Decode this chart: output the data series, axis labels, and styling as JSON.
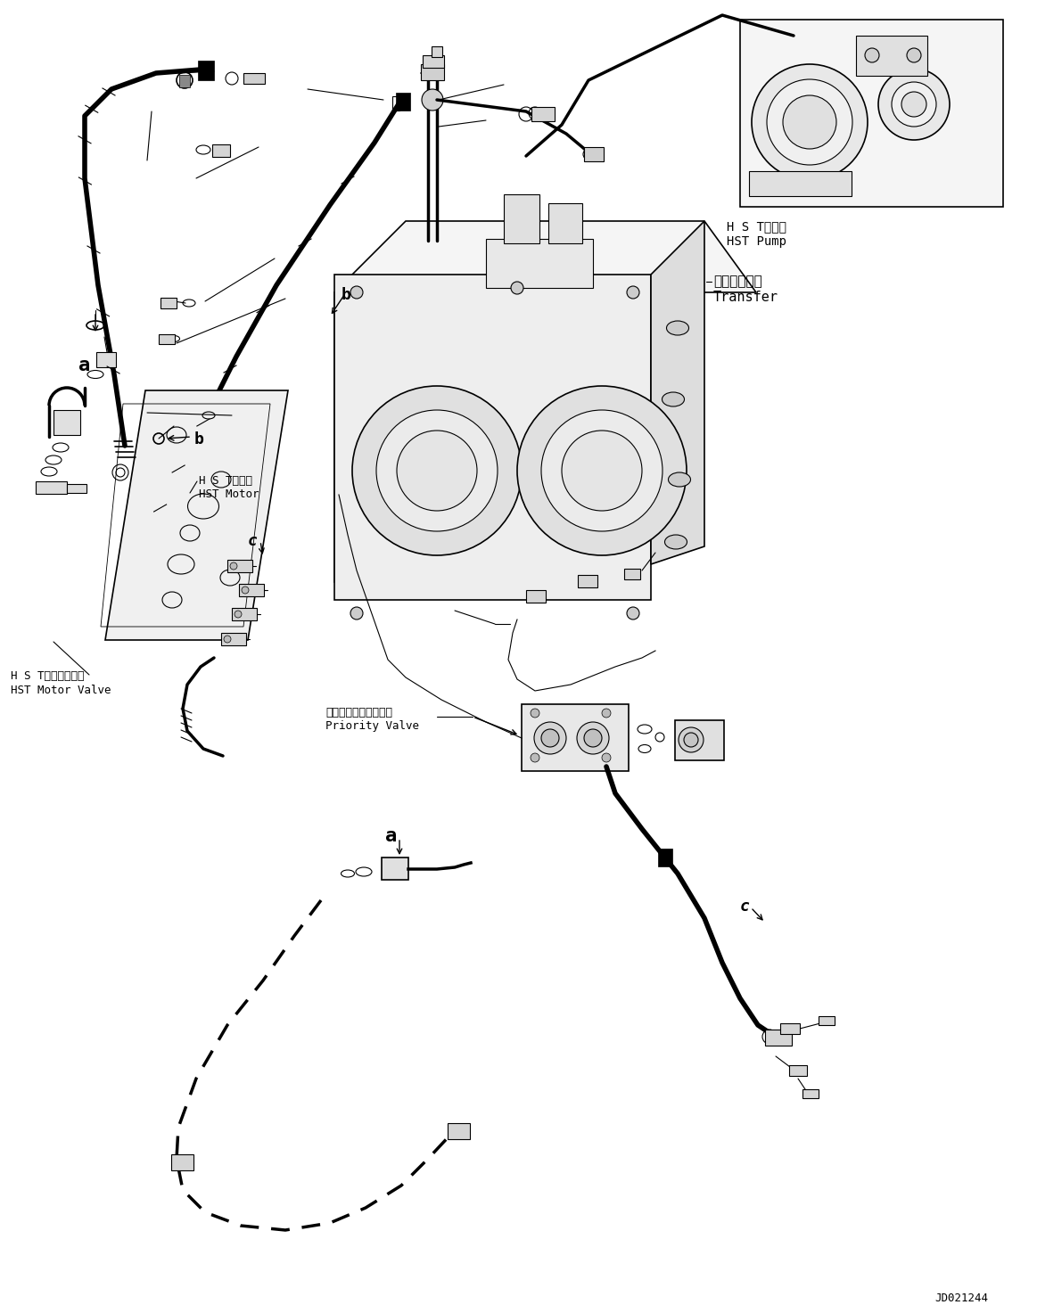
{
  "doc_number": "JD021244",
  "background_color": "#ffffff",
  "labels": {
    "hst_pump_jp": "H S Tポンプ",
    "hst_pump_en": "HST Pump",
    "transfer_jp": "トランスファ",
    "transfer_en": "Transfer",
    "hst_motor_jp": "H S Tモータ",
    "hst_motor_en": "HST Motor",
    "hst_motor_valve_jp": "H S Tモータバルブ",
    "hst_motor_valve_en": "HST Motor Valve",
    "priority_valve_jp": "プライオリティバルブ",
    "priority_valve_en": "Priority Valve"
  },
  "figsize": [
    11.63,
    14.73
  ],
  "dpi": 100
}
